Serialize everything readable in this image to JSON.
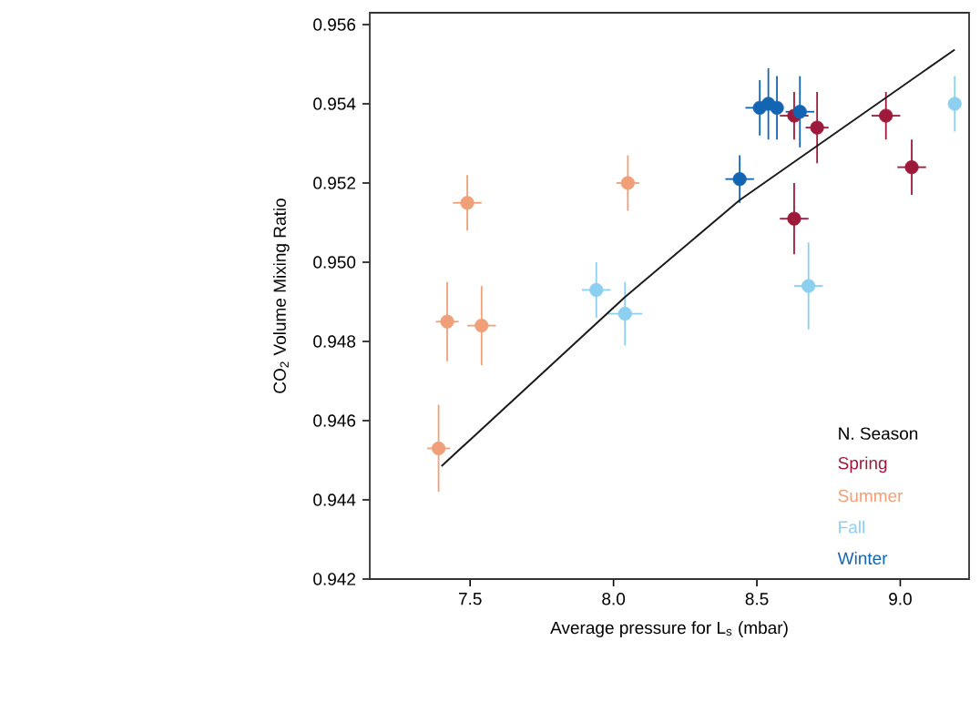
{
  "chart_data": {
    "type": "scatter",
    "xlabel": "Average pressure for L$_{s}$ (mbar)",
    "ylabel": "CO$_{2}$ Volume Mixing Ratio",
    "legend_title": "N. Season",
    "legend": "bottom right",
    "xlim": [
      7.15,
      9.24
    ],
    "ylim": [
      0.942,
      0.9563
    ],
    "xticks": [
      {
        "value": 7.5,
        "label": "7.5"
      },
      {
        "value": 8,
        "label": "8.0"
      },
      {
        "value": 8.5,
        "label": "8.5"
      },
      {
        "value": 9,
        "label": "9.0"
      }
    ],
    "yticks": [
      0.942,
      0.944,
      0.946,
      0.948,
      {
        "value": 0.95,
        "label": "0.950"
      },
      0.952,
      0.954,
      0.956
    ],
    "series": [
      {
        "name": "Spring",
        "marker": "circle",
        "color": "#9e1a3a",
        "x": [
          8.63,
          8.71,
          8.63,
          8.95,
          9.04
        ],
        "values": [
          0.9537,
          0.9534,
          0.9511,
          0.9537,
          0.9524
        ],
        "errors": [
          0.0006,
          0.0009,
          0.0009,
          0.0006,
          0.0007
        ],
        "xerrors": [
          0.05,
          0.04,
          0.05,
          0.05,
          0.05
        ]
      },
      {
        "name": "Summer",
        "marker": "circle",
        "color": "#f0a078",
        "x": [
          7.49,
          8.05,
          7.42,
          7.54,
          7.39
        ],
        "values": [
          0.9515,
          0.952,
          0.9485,
          0.9484,
          0.9453
        ],
        "errors": [
          0.0007,
          0.0007,
          0.001,
          0.001,
          0.0011
        ],
        "xerrors": [
          0.05,
          0.04,
          0.04,
          0.05,
          0.04
        ]
      },
      {
        "name": "Fall",
        "marker": "circle",
        "color": "#8ccfee",
        "x": [
          7.94,
          8.04,
          8.68,
          9.19
        ],
        "values": [
          0.9493,
          0.9487,
          0.9494,
          0.954
        ],
        "errors": [
          0.0007,
          0.0008,
          0.0011,
          0.0007
        ],
        "xerrors": [
          0.05,
          0.06,
          0.05,
          0.02
        ]
      },
      {
        "name": "Winter",
        "marker": "circle",
        "color": "#1464b4",
        "x": [
          8.44,
          8.51,
          8.54,
          8.57,
          8.65
        ],
        "values": [
          0.9521,
          0.9539,
          0.954,
          0.9539,
          0.9538
        ],
        "errors": [
          0.0006,
          0.0007,
          0.0009,
          0.0008,
          0.0009
        ],
        "xerrors": [
          0.05,
          0.05,
          null,
          null,
          0.05
        ]
      },
      {
        "type": "line",
        "marker": "none",
        "color": "#1a1a1a",
        "x": [
          7.4,
          8.04,
          8.44,
          9.19
        ],
        "values": [
          0.94485,
          0.94912,
          0.95157,
          0.95537
        ]
      }
    ]
  }
}
